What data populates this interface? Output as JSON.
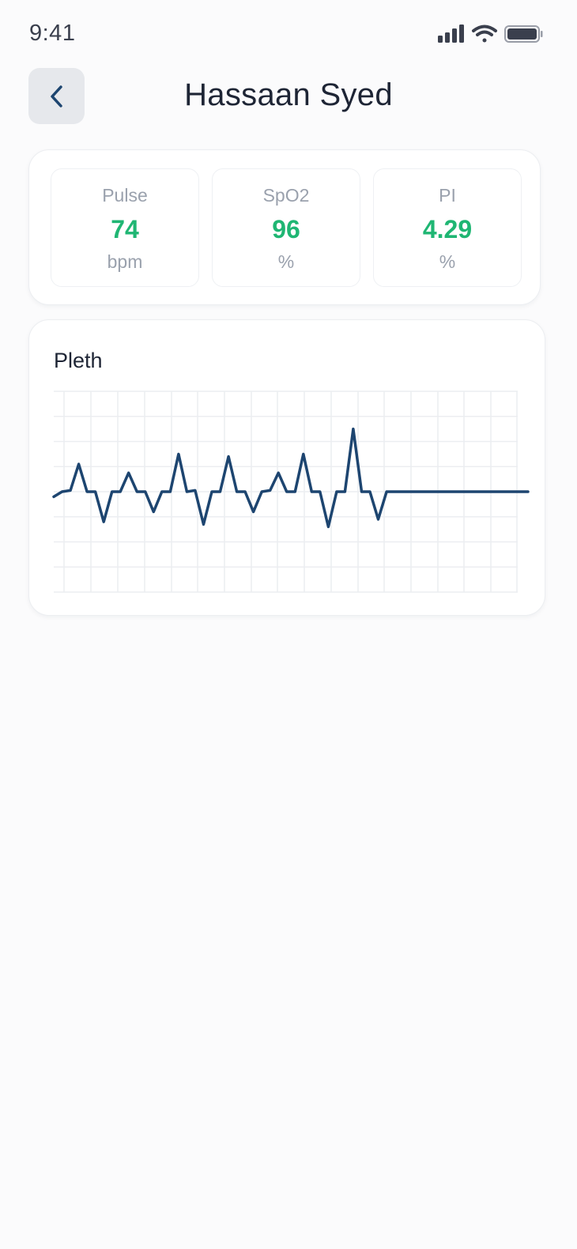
{
  "status_bar": {
    "time": "9:41",
    "icons": [
      "cellular-signal-icon",
      "wifi-icon",
      "battery-icon"
    ]
  },
  "header": {
    "back_icon": "chevron-left-icon",
    "title": "Hassaan Syed"
  },
  "vitals": [
    {
      "label": "Pulse",
      "value": "74",
      "unit": "bpm"
    },
    {
      "label": "SpO2",
      "value": "96",
      "unit": "%"
    },
    {
      "label": "PI",
      "value": "4.29",
      "unit": "%"
    }
  ],
  "colors": {
    "accent_value": "#1fb673",
    "waveform": "#1d4570",
    "grid": "#eceef1"
  },
  "pleth": {
    "title": "Pleth",
    "chart_data": {
      "type": "line",
      "title": "Pleth",
      "xlabel": "",
      "ylabel": "",
      "grid": true,
      "ylim": [
        -4,
        4
      ],
      "x": [
        0,
        1,
        2,
        3,
        4,
        5,
        6,
        7,
        8,
        9,
        10,
        11,
        12,
        13,
        14,
        15,
        16,
        17,
        18,
        19,
        20,
        21,
        22,
        23,
        24,
        25,
        26,
        27,
        28,
        29,
        30,
        31,
        32,
        33,
        34,
        35,
        36,
        37,
        38,
        39,
        40,
        41,
        42,
        43,
        44,
        45,
        46,
        47,
        48,
        49,
        50,
        51,
        52,
        53,
        54,
        55,
        56,
        57
      ],
      "values": [
        -0.2,
        0,
        0.05,
        1.1,
        0,
        0,
        -1.2,
        0,
        0,
        0.75,
        0,
        0,
        -0.8,
        0,
        0,
        1.5,
        0,
        0.05,
        -1.3,
        0,
        0,
        1.4,
        0,
        0,
        -0.8,
        0,
        0.05,
        0.75,
        0,
        0,
        1.5,
        0,
        0,
        -1.4,
        0,
        0,
        2.5,
        0,
        0,
        -1.1,
        0,
        0,
        0,
        0,
        0,
        0,
        0,
        0,
        0,
        0,
        0,
        0,
        0,
        0,
        0,
        0,
        0,
        0
      ]
    }
  }
}
